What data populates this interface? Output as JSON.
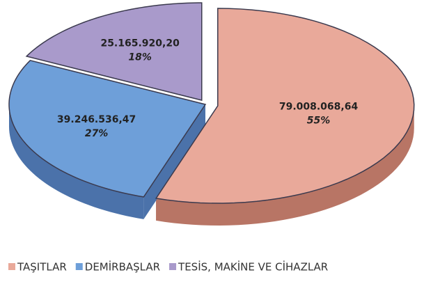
{
  "chart_data": {
    "type": "pie",
    "categories": [
      "TAŞITLAR",
      "DEMİRBAŞLAR",
      "TESİS, MAKİNE VE CİHAZLAR"
    ],
    "values": [
      79008068.64,
      39246536.47,
      25165920.2
    ],
    "value_labels": [
      "79.008.068,64",
      "39.246.536,47",
      "25.165.920,20"
    ],
    "percentages": [
      55,
      27,
      18
    ],
    "percentage_labels": [
      "55%",
      "27%",
      "18%"
    ],
    "colors": [
      "#e9a99a",
      "#6e9fd9",
      "#a99acb"
    ],
    "side_colors": [
      "#b87565",
      "#4b72aa",
      "#77699b"
    ],
    "legend": "bottom"
  }
}
